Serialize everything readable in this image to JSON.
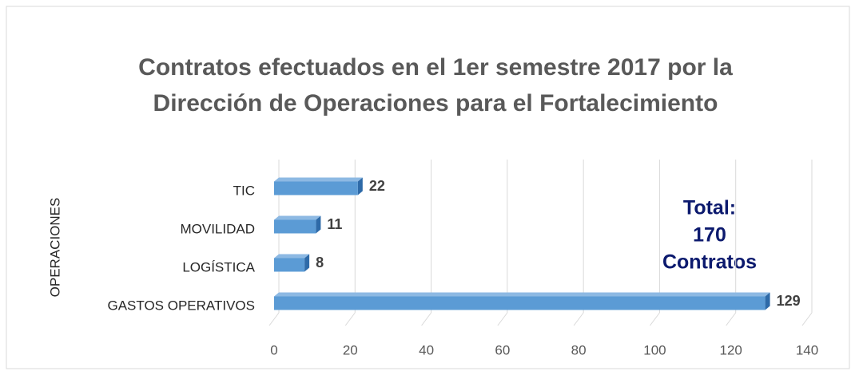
{
  "chart_data": {
    "type": "bar",
    "orientation": "horizontal",
    "title": [
      "Contratos efectuados en el 1er semestre 2017 por la",
      "Dirección de Operaciones para el Fortalecimiento"
    ],
    "y_label": "OPERACIONES",
    "categories": [
      "TIC",
      "MOVILIDAD",
      "LOGÍSTICA",
      "GASTOS OPERATIVOS"
    ],
    "values": [
      22,
      11,
      8,
      129
    ],
    "color": "#5b9bd5",
    "xlim": [
      0,
      140
    ],
    "xticks": [
      0,
      20,
      40,
      60,
      80,
      100,
      120,
      140
    ],
    "grid": true,
    "annotation": [
      "Total:",
      "170",
      "Contratos"
    ]
  }
}
